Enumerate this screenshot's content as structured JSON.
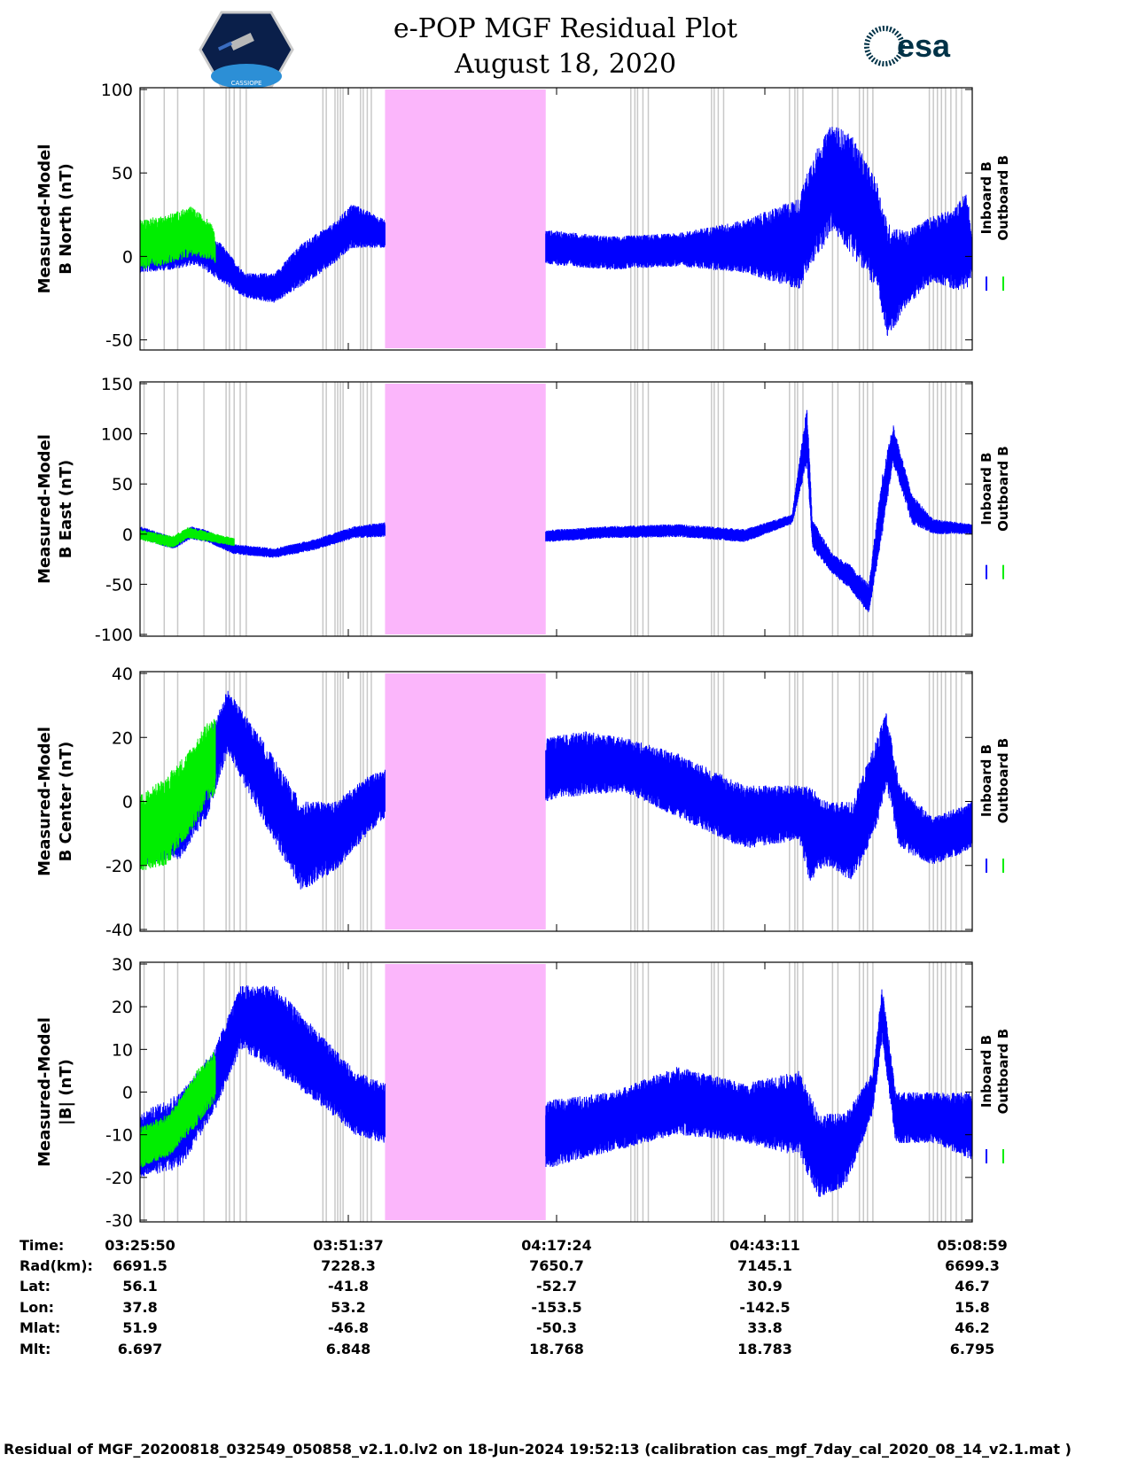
{
  "header": {
    "title_line1": "e-POP MGF Residual Plot",
    "title_line2": "August 18, 2020",
    "left_logo_text": "CASSIOPE",
    "right_logo_text": "esa"
  },
  "colors": {
    "inboard": "#0000ff",
    "outboard": "#00ee00",
    "gap_fill": "#fbb6fb",
    "event_lines": "#c8c8c8"
  },
  "chart_data": {
    "type": "line",
    "x_range_seconds": [
      0,
      6189
    ],
    "data_gap_seconds": [
      1822,
      3017
    ],
    "event_line_seconds": [
      30,
      180,
      280,
      475,
      640,
      665,
      700,
      745,
      790,
      1360,
      1385,
      1450,
      1470,
      1490,
      1510,
      1640,
      1660,
      1690,
      1720,
      3650,
      3680,
      3700,
      3740,
      3780,
      4250,
      4270,
      4300,
      4340,
      4830,
      4870,
      4890,
      4930,
      5150,
      5190,
      5350,
      5380,
      5410,
      5450,
      5870,
      5900,
      5930,
      5960,
      5990,
      6030,
      6070,
      6110
    ],
    "legend": [
      "Inboard B",
      "Outboard B"
    ],
    "panels": [
      {
        "ylabel_line1": "Measured-Model",
        "ylabel_line2": "B North (nT)",
        "ylim": [
          -55,
          100
        ],
        "yticks": [
          -50,
          0,
          50,
          100
        ],
        "inboard_envelope": [
          [
            0,
            12,
            -10
          ],
          [
            240,
            15,
            -8
          ],
          [
            420,
            15,
            -5
          ],
          [
            600,
            8,
            -15
          ],
          [
            780,
            -10,
            -25
          ],
          [
            1000,
            -10,
            -28
          ],
          [
            1200,
            8,
            -18
          ],
          [
            1440,
            20,
            -5
          ],
          [
            1580,
            32,
            5
          ],
          [
            1822,
            22,
            5
          ],
          [
            3017,
            16,
            -5
          ],
          [
            3500,
            12,
            -8
          ],
          [
            4000,
            14,
            -6
          ],
          [
            4500,
            22,
            -10
          ],
          [
            4900,
            35,
            -20
          ],
          [
            5000,
            60,
            -5
          ],
          [
            5150,
            80,
            15
          ],
          [
            5300,
            72,
            0
          ],
          [
            5480,
            45,
            -20
          ],
          [
            5560,
            20,
            -50
          ],
          [
            5700,
            15,
            -30
          ],
          [
            5900,
            25,
            -15
          ],
          [
            6050,
            28,
            -20
          ],
          [
            6150,
            40,
            -20
          ],
          [
            6189,
            10,
            -10
          ]
        ],
        "outboard_envelope": [
          [
            0,
            22,
            -8
          ],
          [
            200,
            25,
            -5
          ],
          [
            380,
            30,
            0
          ],
          [
            540,
            20,
            -2
          ],
          [
            560,
            10,
            -5
          ]
        ]
      },
      {
        "ylabel_line1": "Measured-Model",
        "ylabel_line2": "B East (nT)",
        "ylim": [
          -100,
          150
        ],
        "yticks": [
          -100,
          -50,
          0,
          50,
          100,
          150
        ],
        "inboard_envelope": [
          [
            0,
            8,
            -5
          ],
          [
            250,
            -3,
            -15
          ],
          [
            380,
            8,
            -5
          ],
          [
            500,
            4,
            -8
          ],
          [
            700,
            -10,
            -20
          ],
          [
            1000,
            -14,
            -24
          ],
          [
            1300,
            -5,
            -16
          ],
          [
            1600,
            8,
            -4
          ],
          [
            1822,
            12,
            -3
          ],
          [
            3017,
            4,
            -8
          ],
          [
            3500,
            8,
            -4
          ],
          [
            4000,
            10,
            -3
          ],
          [
            4500,
            5,
            -8
          ],
          [
            4850,
            20,
            10
          ],
          [
            4960,
            130,
            70
          ],
          [
            5000,
            15,
            -15
          ],
          [
            5150,
            -20,
            -40
          ],
          [
            5280,
            -30,
            -55
          ],
          [
            5420,
            -50,
            -80
          ],
          [
            5520,
            60,
            0
          ],
          [
            5600,
            110,
            70
          ],
          [
            5740,
            40,
            10
          ],
          [
            5900,
            15,
            0
          ],
          [
            6189,
            10,
            0
          ]
        ],
        "outboard_envelope": [
          [
            0,
            5,
            -6
          ],
          [
            240,
            -2,
            -14
          ],
          [
            360,
            7,
            -4
          ],
          [
            520,
            2,
            -8
          ],
          [
            700,
            -4,
            -12
          ]
        ]
      },
      {
        "ylabel_line1": "Measured-Model",
        "ylabel_line2": "B Center (nT)",
        "ylim": [
          -40,
          40
        ],
        "yticks": [
          -40,
          -20,
          0,
          20,
          40
        ],
        "inboard_envelope": [
          [
            0,
            -5,
            -20
          ],
          [
            300,
            5,
            -18
          ],
          [
            500,
            20,
            -5
          ],
          [
            650,
            35,
            15
          ],
          [
            900,
            20,
            -5
          ],
          [
            1200,
            0,
            -28
          ],
          [
            1450,
            0,
            -22
          ],
          [
            1700,
            8,
            -10
          ],
          [
            1822,
            10,
            -5
          ],
          [
            3017,
            20,
            0
          ],
          [
            3300,
            22,
            2
          ],
          [
            3600,
            20,
            3
          ],
          [
            4000,
            15,
            -5
          ],
          [
            4500,
            5,
            -15
          ],
          [
            4900,
            5,
            -12
          ],
          [
            4980,
            5,
            -25
          ],
          [
            5100,
            0,
            -20
          ],
          [
            5300,
            0,
            -25
          ],
          [
            5480,
            20,
            -8
          ],
          [
            5550,
            28,
            5
          ],
          [
            5650,
            5,
            -15
          ],
          [
            5900,
            -5,
            -20
          ],
          [
            6189,
            0,
            -15
          ]
        ],
        "outboard_envelope": [
          [
            0,
            2,
            -22
          ],
          [
            200,
            8,
            -20
          ],
          [
            400,
            18,
            -8
          ],
          [
            500,
            25,
            0
          ],
          [
            560,
            26,
            2
          ]
        ]
      },
      {
        "ylabel_line1": "Measured-Model",
        "ylabel_line2": "|B| (nT)",
        "ylim": [
          -30,
          30
        ],
        "yticks": [
          -30,
          -20,
          -10,
          0,
          10,
          20,
          30
        ],
        "inboard_envelope": [
          [
            0,
            -5,
            -20
          ],
          [
            300,
            0,
            -18
          ],
          [
            550,
            10,
            -5
          ],
          [
            750,
            25,
            10
          ],
          [
            1000,
            25,
            5
          ],
          [
            1300,
            15,
            -2
          ],
          [
            1600,
            5,
            -10
          ],
          [
            1822,
            2,
            -12
          ],
          [
            3017,
            -2,
            -18
          ],
          [
            3500,
            0,
            -14
          ],
          [
            4000,
            6,
            -10
          ],
          [
            4500,
            2,
            -12
          ],
          [
            4900,
            5,
            -15
          ],
          [
            5050,
            -5,
            -25
          ],
          [
            5250,
            -5,
            -22
          ],
          [
            5450,
            5,
            -5
          ],
          [
            5520,
            25,
            12
          ],
          [
            5620,
            0,
            -12
          ],
          [
            5900,
            0,
            -12
          ],
          [
            6189,
            0,
            -16
          ]
        ],
        "outboard_envelope": [
          [
            0,
            -8,
            -18
          ],
          [
            220,
            -5,
            -15
          ],
          [
            420,
            5,
            -8
          ],
          [
            560,
            10,
            -2
          ]
        ]
      }
    ]
  },
  "footer_table": {
    "labels": [
      "Time:",
      "Rad(km):",
      "Lat:",
      "Lon:",
      "Mlat:",
      "Mlt:"
    ],
    "columns": [
      [
        "03:25:50",
        "6691.5",
        "56.1",
        "37.8",
        "51.9",
        "6.697"
      ],
      [
        "03:51:37",
        "7228.3",
        "-41.8",
        "53.2",
        "-46.8",
        "6.848"
      ],
      [
        "04:17:24",
        "7650.7",
        "-52.7",
        "-153.5",
        "-50.3",
        "18.768"
      ],
      [
        "04:43:11",
        "7145.1",
        "30.9",
        "-142.5",
        "33.8",
        "18.783"
      ],
      [
        "05:08:59",
        "6699.3",
        "46.7",
        "15.8",
        "46.2",
        "6.795"
      ]
    ]
  },
  "footer_note": "Residual of MGF_20200818_032549_050858_v2.1.0.lv2 on 18-Jun-2024 19:52:13 (calibration cas_mgf_7day_cal_2020_08_14_v2.1.mat )"
}
